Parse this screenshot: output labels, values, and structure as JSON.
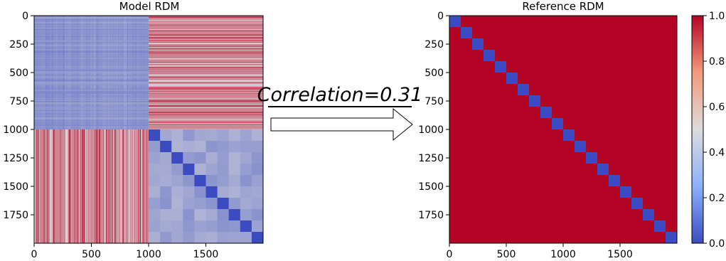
{
  "colors": {
    "low": "#3b4cc0",
    "mid": "#dddcdc",
    "high": "#b40426"
  },
  "chart_data": [
    {
      "type": "heatmap",
      "title": "Model RDM",
      "n": 2000,
      "xlim": [
        0,
        2000
      ],
      "ylim": [
        2000,
        0
      ],
      "xticks": [
        0,
        500,
        1000,
        1500
      ],
      "yticks": [
        0,
        250,
        500,
        750,
        1000,
        1250,
        1500,
        1750
      ],
      "xtick_labels": [
        "0",
        "500",
        "1000",
        "1500"
      ],
      "ytick_labels": [
        "0",
        "250",
        "500",
        "750",
        "1000",
        "1250",
        "1500",
        "1750"
      ],
      "block_size": 1000,
      "quadrant_values": {
        "top_left": 0.25,
        "off_diagonal": 0.7,
        "bottom_right": 0.3
      },
      "diagonal_blocks": {
        "start": 1000,
        "size": 100,
        "count": 10,
        "value": 0.0
      }
    },
    {
      "type": "heatmap",
      "title": "Reference RDM",
      "n": 2000,
      "xlim": [
        0,
        2000
      ],
      "ylim": [
        2000,
        0
      ],
      "xticks": [
        0,
        500,
        1000,
        1500
      ],
      "yticks": [
        0,
        250,
        500,
        750,
        1000,
        1250,
        1500,
        1750
      ],
      "xtick_labels": [
        "0",
        "500",
        "1000",
        "1500"
      ],
      "ytick_labels": [
        "0",
        "250",
        "500",
        "750",
        "1000",
        "1250",
        "1500",
        "1750"
      ],
      "background_value": 1.0,
      "diagonal_blocks": {
        "start": 0,
        "size": 100,
        "count": 20,
        "value": 0.0
      },
      "colorbar": {
        "range": [
          0.0,
          1.0
        ],
        "ticks": [
          0.0,
          0.2,
          0.4,
          0.6,
          0.8,
          1.0
        ],
        "tick_labels": [
          "0.0",
          "0.2",
          "0.4",
          "0.6",
          "0.8",
          "1.0"
        ]
      }
    }
  ],
  "annotation": {
    "text": "Correlation=0.31"
  }
}
